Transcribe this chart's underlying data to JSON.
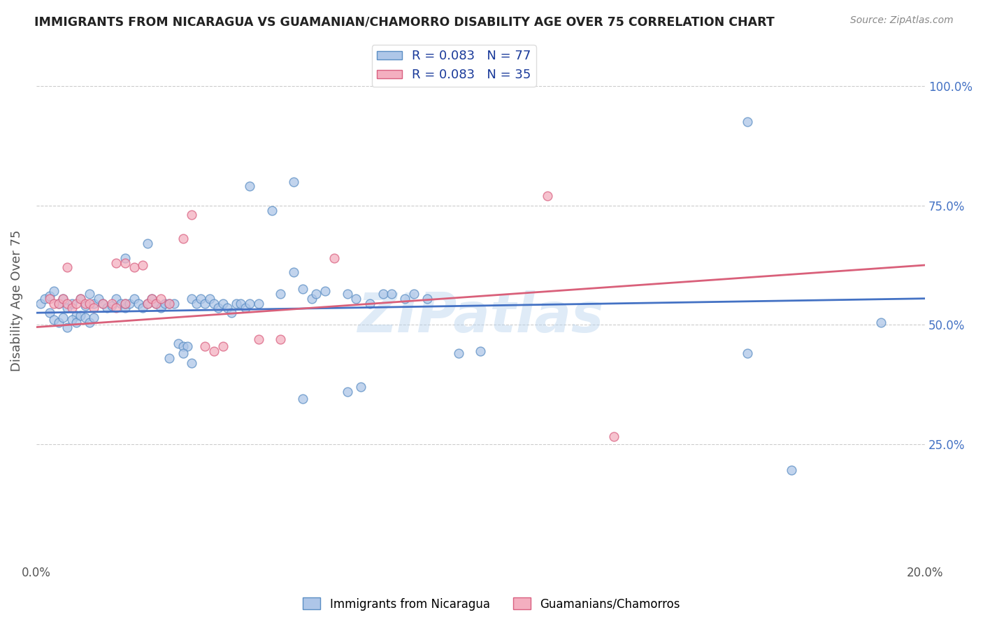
{
  "title": "IMMIGRANTS FROM NICARAGUA VS GUAMANIAN/CHAMORRO DISABILITY AGE OVER 75 CORRELATION CHART",
  "source": "Source: ZipAtlas.com",
  "ylabel": "Disability Age Over 75",
  "y_ticks": [
    0.25,
    0.5,
    0.75,
    1.0
  ],
  "y_tick_labels": [
    "25.0%",
    "50.0%",
    "75.0%",
    "100.0%"
  ],
  "xlim": [
    0.0,
    0.2
  ],
  "ylim": [
    0.0,
    1.1
  ],
  "watermark": "ZIPatlas",
  "blue_scatter": [
    [
      0.001,
      0.545
    ],
    [
      0.002,
      0.555
    ],
    [
      0.003,
      0.56
    ],
    [
      0.004,
      0.57
    ],
    [
      0.005,
      0.545
    ],
    [
      0.006,
      0.555
    ],
    [
      0.007,
      0.535
    ],
    [
      0.008,
      0.545
    ],
    [
      0.009,
      0.52
    ],
    [
      0.01,
      0.555
    ],
    [
      0.011,
      0.54
    ],
    [
      0.012,
      0.565
    ],
    [
      0.013,
      0.545
    ],
    [
      0.014,
      0.555
    ],
    [
      0.015,
      0.545
    ],
    [
      0.016,
      0.535
    ],
    [
      0.017,
      0.54
    ],
    [
      0.018,
      0.555
    ],
    [
      0.019,
      0.545
    ],
    [
      0.02,
      0.535
    ],
    [
      0.003,
      0.525
    ],
    [
      0.004,
      0.51
    ],
    [
      0.005,
      0.505
    ],
    [
      0.006,
      0.515
    ],
    [
      0.007,
      0.495
    ],
    [
      0.008,
      0.51
    ],
    [
      0.009,
      0.505
    ],
    [
      0.01,
      0.52
    ],
    [
      0.011,
      0.515
    ],
    [
      0.012,
      0.505
    ],
    [
      0.013,
      0.515
    ],
    [
      0.02,
      0.545
    ],
    [
      0.021,
      0.545
    ],
    [
      0.022,
      0.555
    ],
    [
      0.023,
      0.545
    ],
    [
      0.024,
      0.535
    ],
    [
      0.025,
      0.545
    ],
    [
      0.026,
      0.555
    ],
    [
      0.027,
      0.545
    ],
    [
      0.028,
      0.535
    ],
    [
      0.029,
      0.545
    ],
    [
      0.03,
      0.545
    ],
    [
      0.031,
      0.545
    ],
    [
      0.032,
      0.46
    ],
    [
      0.033,
      0.455
    ],
    [
      0.034,
      0.455
    ],
    [
      0.035,
      0.555
    ],
    [
      0.036,
      0.545
    ],
    [
      0.037,
      0.555
    ],
    [
      0.038,
      0.545
    ],
    [
      0.039,
      0.555
    ],
    [
      0.04,
      0.545
    ],
    [
      0.041,
      0.535
    ],
    [
      0.042,
      0.545
    ],
    [
      0.043,
      0.535
    ],
    [
      0.044,
      0.525
    ],
    [
      0.045,
      0.545
    ],
    [
      0.046,
      0.545
    ],
    [
      0.047,
      0.535
    ],
    [
      0.048,
      0.545
    ],
    [
      0.05,
      0.545
    ],
    [
      0.055,
      0.565
    ],
    [
      0.058,
      0.61
    ],
    [
      0.06,
      0.575
    ],
    [
      0.062,
      0.555
    ],
    [
      0.063,
      0.565
    ],
    [
      0.065,
      0.57
    ],
    [
      0.07,
      0.565
    ],
    [
      0.072,
      0.555
    ],
    [
      0.075,
      0.545
    ],
    [
      0.078,
      0.565
    ],
    [
      0.08,
      0.565
    ],
    [
      0.083,
      0.555
    ],
    [
      0.085,
      0.565
    ],
    [
      0.088,
      0.555
    ],
    [
      0.048,
      0.79
    ],
    [
      0.053,
      0.74
    ],
    [
      0.058,
      0.8
    ],
    [
      0.02,
      0.64
    ],
    [
      0.025,
      0.67
    ],
    [
      0.03,
      0.43
    ],
    [
      0.033,
      0.44
    ],
    [
      0.035,
      0.42
    ],
    [
      0.06,
      0.345
    ],
    [
      0.07,
      0.36
    ],
    [
      0.16,
      0.44
    ],
    [
      0.19,
      0.505
    ],
    [
      0.16,
      0.925
    ],
    [
      0.17,
      0.195
    ],
    [
      0.1,
      0.445
    ],
    [
      0.095,
      0.44
    ],
    [
      0.073,
      0.37
    ]
  ],
  "pink_scatter": [
    [
      0.003,
      0.555
    ],
    [
      0.004,
      0.545
    ],
    [
      0.005,
      0.545
    ],
    [
      0.006,
      0.555
    ],
    [
      0.007,
      0.545
    ],
    [
      0.008,
      0.535
    ],
    [
      0.009,
      0.545
    ],
    [
      0.01,
      0.555
    ],
    [
      0.011,
      0.545
    ],
    [
      0.012,
      0.545
    ],
    [
      0.013,
      0.535
    ],
    [
      0.015,
      0.545
    ],
    [
      0.017,
      0.545
    ],
    [
      0.018,
      0.535
    ],
    [
      0.02,
      0.545
    ],
    [
      0.007,
      0.62
    ],
    [
      0.018,
      0.63
    ],
    [
      0.02,
      0.63
    ],
    [
      0.022,
      0.62
    ],
    [
      0.024,
      0.625
    ],
    [
      0.025,
      0.545
    ],
    [
      0.026,
      0.555
    ],
    [
      0.027,
      0.545
    ],
    [
      0.028,
      0.555
    ],
    [
      0.03,
      0.545
    ],
    [
      0.033,
      0.68
    ],
    [
      0.035,
      0.73
    ],
    [
      0.038,
      0.455
    ],
    [
      0.04,
      0.445
    ],
    [
      0.042,
      0.455
    ],
    [
      0.05,
      0.47
    ],
    [
      0.055,
      0.47
    ],
    [
      0.067,
      0.64
    ],
    [
      0.13,
      0.265
    ],
    [
      0.115,
      0.77
    ]
  ],
  "blue_line_x": [
    0.0,
    0.2
  ],
  "blue_line_y": [
    0.525,
    0.555
  ],
  "pink_line_x": [
    0.0,
    0.2
  ],
  "pink_line_y": [
    0.495,
    0.625
  ],
  "blue_color": "#aec6e8",
  "pink_color": "#f4afc0",
  "blue_edge_color": "#5b8ec4",
  "pink_edge_color": "#d96080",
  "blue_line_color": "#4472c4",
  "pink_line_color": "#d9607a",
  "marker_size": 85,
  "marker_linewidth": 1.0
}
